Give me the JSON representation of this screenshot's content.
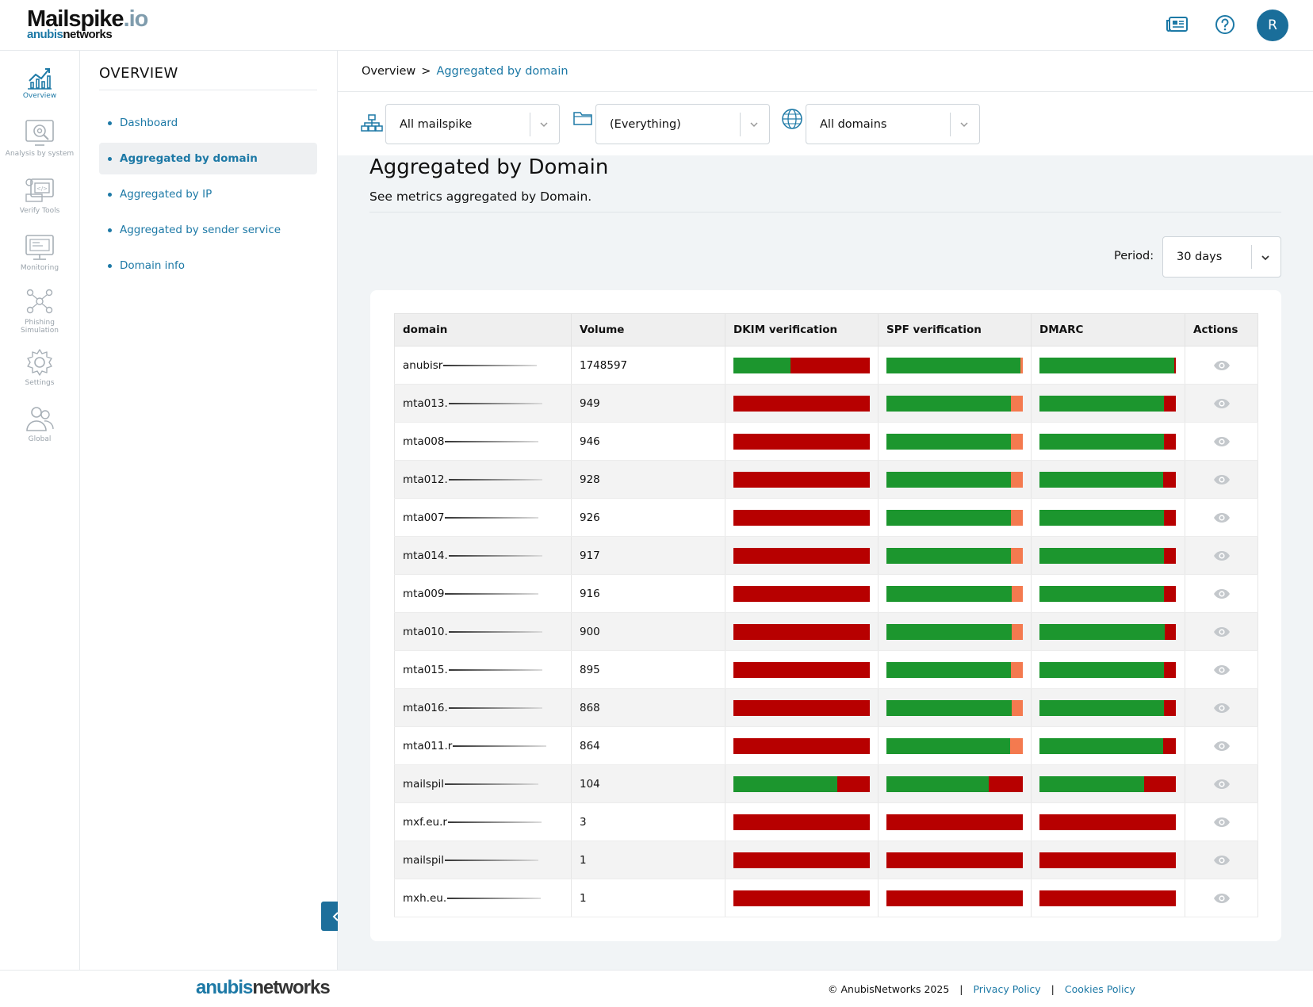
{
  "app": {
    "logo_main": "Mailspike",
    "logo_suffix": ".io",
    "logo_sub_a": "anubis",
    "logo_sub_b": "networks",
    "avatar_initial": "R"
  },
  "rail": [
    {
      "label": "Overview",
      "icon": "chart-icon",
      "active": true
    },
    {
      "label": "Analysis by system",
      "icon": "analysis-icon",
      "active": false
    },
    {
      "label": "Verify Tools",
      "icon": "verify-tools-icon",
      "active": false
    },
    {
      "label": "Monitoring",
      "icon": "monitor-icon",
      "active": false
    },
    {
      "label": "Phishing Simulation",
      "icon": "network-people-icon",
      "active": false
    },
    {
      "label": "Settings",
      "icon": "gear-icon",
      "active": false
    },
    {
      "label": "Global",
      "icon": "users-icon",
      "active": false
    }
  ],
  "section": {
    "title": "OVERVIEW",
    "items": [
      {
        "label": "Dashboard",
        "active": false
      },
      {
        "label": "Aggregated by domain",
        "active": true
      },
      {
        "label": "Aggregated by IP",
        "active": false
      },
      {
        "label": "Aggregated by sender service",
        "active": false
      },
      {
        "label": "Domain info",
        "active": false
      }
    ]
  },
  "breadcrumb": {
    "root": "Overview",
    "sep": ">",
    "current": "Aggregated by domain"
  },
  "filters": {
    "system": "All mailspike",
    "folder": "(Everything)",
    "domains": "All domains"
  },
  "page": {
    "title": "Aggregated by Domain",
    "subtitle": "See metrics aggregated by Domain."
  },
  "period": {
    "label": "Period:",
    "value": "30 days"
  },
  "table": {
    "headers": [
      "domain",
      "Volume",
      "DKIM verification",
      "SPF verification",
      "DMARC",
      "Actions"
    ],
    "colors": {
      "pass": "#1c962e",
      "fail": "#b70000",
      "partial": "#f47a4f"
    },
    "rows": [
      {
        "domain": "anubisr",
        "volume": "1748597",
        "dkim": [
          [
            0.42,
            "pass"
          ],
          [
            0.58,
            "fail"
          ]
        ],
        "spf": [
          [
            0.985,
            "pass"
          ],
          [
            0.015,
            "partial"
          ]
        ],
        "dmarc": [
          [
            0.99,
            "pass"
          ],
          [
            0.01,
            "fail"
          ]
        ]
      },
      {
        "domain": "mta013.",
        "volume": "949",
        "dkim": [
          [
            1,
            "fail"
          ]
        ],
        "spf": [
          [
            0.91,
            "pass"
          ],
          [
            0.09,
            "partial"
          ]
        ],
        "dmarc": [
          [
            0.91,
            "pass"
          ],
          [
            0.09,
            "fail"
          ]
        ]
      },
      {
        "domain": "mta008",
        "volume": "946",
        "dkim": [
          [
            1,
            "fail"
          ]
        ],
        "spf": [
          [
            0.915,
            "pass"
          ],
          [
            0.085,
            "partial"
          ]
        ],
        "dmarc": [
          [
            0.915,
            "pass"
          ],
          [
            0.085,
            "fail"
          ]
        ]
      },
      {
        "domain": "mta012.",
        "volume": "928",
        "dkim": [
          [
            1,
            "fail"
          ]
        ],
        "spf": [
          [
            0.91,
            "pass"
          ],
          [
            0.09,
            "partial"
          ]
        ],
        "dmarc": [
          [
            0.905,
            "pass"
          ],
          [
            0.095,
            "fail"
          ]
        ]
      },
      {
        "domain": "mta007",
        "volume": "926",
        "dkim": [
          [
            1,
            "fail"
          ]
        ],
        "spf": [
          [
            0.915,
            "pass"
          ],
          [
            0.085,
            "partial"
          ]
        ],
        "dmarc": [
          [
            0.915,
            "pass"
          ],
          [
            0.085,
            "fail"
          ]
        ]
      },
      {
        "domain": "mta014.",
        "volume": "917",
        "dkim": [
          [
            1,
            "fail"
          ]
        ],
        "spf": [
          [
            0.915,
            "pass"
          ],
          [
            0.085,
            "partial"
          ]
        ],
        "dmarc": [
          [
            0.915,
            "pass"
          ],
          [
            0.085,
            "fail"
          ]
        ]
      },
      {
        "domain": "mta009",
        "volume": "916",
        "dkim": [
          [
            1,
            "fail"
          ]
        ],
        "spf": [
          [
            0.92,
            "pass"
          ],
          [
            0.08,
            "partial"
          ]
        ],
        "dmarc": [
          [
            0.915,
            "pass"
          ],
          [
            0.085,
            "fail"
          ]
        ]
      },
      {
        "domain": "mta010.",
        "volume": "900",
        "dkim": [
          [
            1,
            "fail"
          ]
        ],
        "spf": [
          [
            0.92,
            "pass"
          ],
          [
            0.08,
            "partial"
          ]
        ],
        "dmarc": [
          [
            0.92,
            "pass"
          ],
          [
            0.08,
            "fail"
          ]
        ]
      },
      {
        "domain": "mta015.",
        "volume": "895",
        "dkim": [
          [
            1,
            "fail"
          ]
        ],
        "spf": [
          [
            0.91,
            "pass"
          ],
          [
            0.09,
            "partial"
          ]
        ],
        "dmarc": [
          [
            0.91,
            "pass"
          ],
          [
            0.09,
            "fail"
          ]
        ]
      },
      {
        "domain": "mta016.",
        "volume": "868",
        "dkim": [
          [
            1,
            "fail"
          ]
        ],
        "spf": [
          [
            0.92,
            "pass"
          ],
          [
            0.08,
            "partial"
          ]
        ],
        "dmarc": [
          [
            0.915,
            "pass"
          ],
          [
            0.085,
            "fail"
          ]
        ]
      },
      {
        "domain": "mta011.r",
        "volume": "864",
        "dkim": [
          [
            1,
            "fail"
          ]
        ],
        "spf": [
          [
            0.905,
            "pass"
          ],
          [
            0.095,
            "partial"
          ]
        ],
        "dmarc": [
          [
            0.905,
            "pass"
          ],
          [
            0.095,
            "fail"
          ]
        ]
      },
      {
        "domain": "mailspil",
        "volume": "104",
        "dkim": [
          [
            0.76,
            "pass"
          ],
          [
            0.24,
            "fail"
          ]
        ],
        "spf": [
          [
            0.75,
            "pass"
          ],
          [
            0.25,
            "fail"
          ]
        ],
        "dmarc": [
          [
            0.77,
            "pass"
          ],
          [
            0.23,
            "fail"
          ]
        ]
      },
      {
        "domain": "mxf.eu.r",
        "volume": "3",
        "dkim": [
          [
            1,
            "fail"
          ]
        ],
        "spf": [
          [
            1,
            "fail"
          ]
        ],
        "dmarc": [
          [
            1,
            "fail"
          ]
        ]
      },
      {
        "domain": "mailspil",
        "volume": "1",
        "dkim": [
          [
            1,
            "fail"
          ]
        ],
        "spf": [
          [
            1,
            "fail"
          ]
        ],
        "dmarc": [
          [
            1,
            "fail"
          ]
        ]
      },
      {
        "domain": "mxh.eu.",
        "volume": "1",
        "dkim": [
          [
            1,
            "fail"
          ]
        ],
        "spf": [
          [
            1,
            "fail"
          ]
        ],
        "dmarc": [
          [
            1,
            "fail"
          ]
        ]
      }
    ]
  },
  "footer": {
    "logo_a": "anubis",
    "logo_b": "networks",
    "copyright": "© AnubisNetworks 2025",
    "sep": "|",
    "privacy": "Privacy Policy",
    "cookies": "Cookies Policy"
  }
}
